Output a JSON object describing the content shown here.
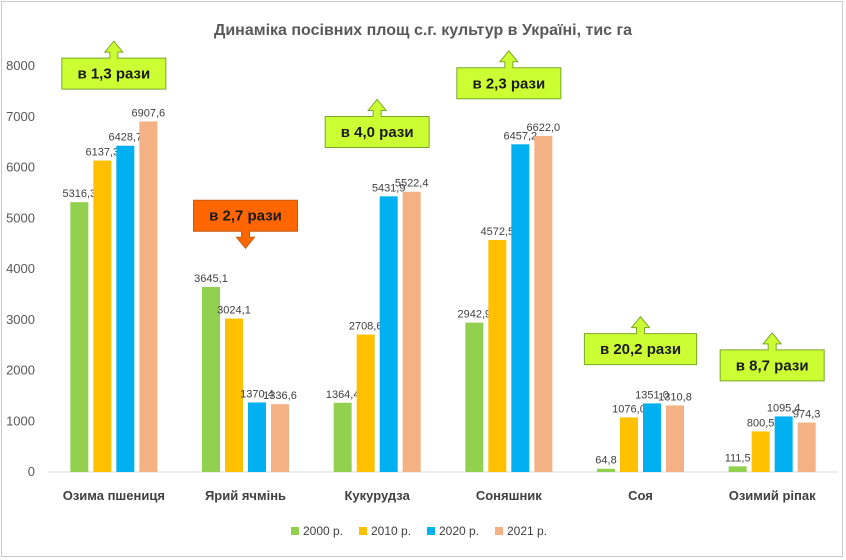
{
  "chart_data": {
    "type": "bar",
    "title": "Динаміка посівних площ с.г. культур в Україні, тис га",
    "categories": [
      "Озима пшениця",
      "Ярий ячмінь",
      "Кукурудза",
      "Соняшник",
      "Соя",
      "Озимий ріпак"
    ],
    "series": [
      {
        "name": "2000 р.",
        "color": "#92d050",
        "values": [
          5316.3,
          3645.1,
          1364.4,
          2942.9,
          64.8,
          111.5
        ],
        "labels": [
          "5316,3",
          "3645,1",
          "1364,4",
          "2942,9",
          "64,8",
          "111,5"
        ]
      },
      {
        "name": "2010 р.",
        "color": "#ffc000",
        "values": [
          6137.3,
          3024.1,
          2708.6,
          4572.5,
          1076.0,
          800.5
        ],
        "labels": [
          "6137,3",
          "3024,1",
          "2708,6",
          "4572,5",
          "1076,0",
          "800,5"
        ]
      },
      {
        "name": "2020 р.",
        "color": "#00b0f0",
        "values": [
          6428.7,
          1370.4,
          5431.9,
          6457.2,
          1351.0,
          1095.4
        ],
        "labels": [
          "6428,7",
          "1370,4",
          "5431,9",
          "6457,2",
          "1351,0",
          "1095,4"
        ]
      },
      {
        "name": "2021 р.",
        "color": "#f4b183",
        "values": [
          6907.6,
          1336.6,
          5522.4,
          6622.0,
          1310.8,
          974.3
        ],
        "labels": [
          "6907,6",
          "1336,6",
          "5522,4",
          "6622,0",
          "1310,8",
          "974,3"
        ]
      }
    ],
    "ylim": [
      0,
      8000
    ],
    "yticks": [
      0,
      1000,
      2000,
      3000,
      4000,
      5000,
      6000,
      7000,
      8000
    ],
    "grid": false,
    "legend": "bottom",
    "annotations": [
      {
        "category": 0,
        "text": "в 1,3 рази",
        "direction": "up",
        "value": 7850,
        "color": "#ccff33"
      },
      {
        "category": 1,
        "text": "в 2,7 рази",
        "direction": "down",
        "value": 5050,
        "color": "#ff6600"
      },
      {
        "category": 2,
        "text": "в 4,0 рази",
        "direction": "up",
        "value": 6700,
        "color": "#ccff33"
      },
      {
        "category": 3,
        "text": "в 2,3 рази",
        "direction": "up",
        "value": 7660,
        "color": "#ccff33"
      },
      {
        "category": 4,
        "text": "в 20,2 рази",
        "direction": "up",
        "value": 2420,
        "color": "#ccff33"
      },
      {
        "category": 5,
        "text": "в 8,7 рази",
        "direction": "up",
        "value": 2100,
        "color": "#ccff33"
      }
    ]
  }
}
